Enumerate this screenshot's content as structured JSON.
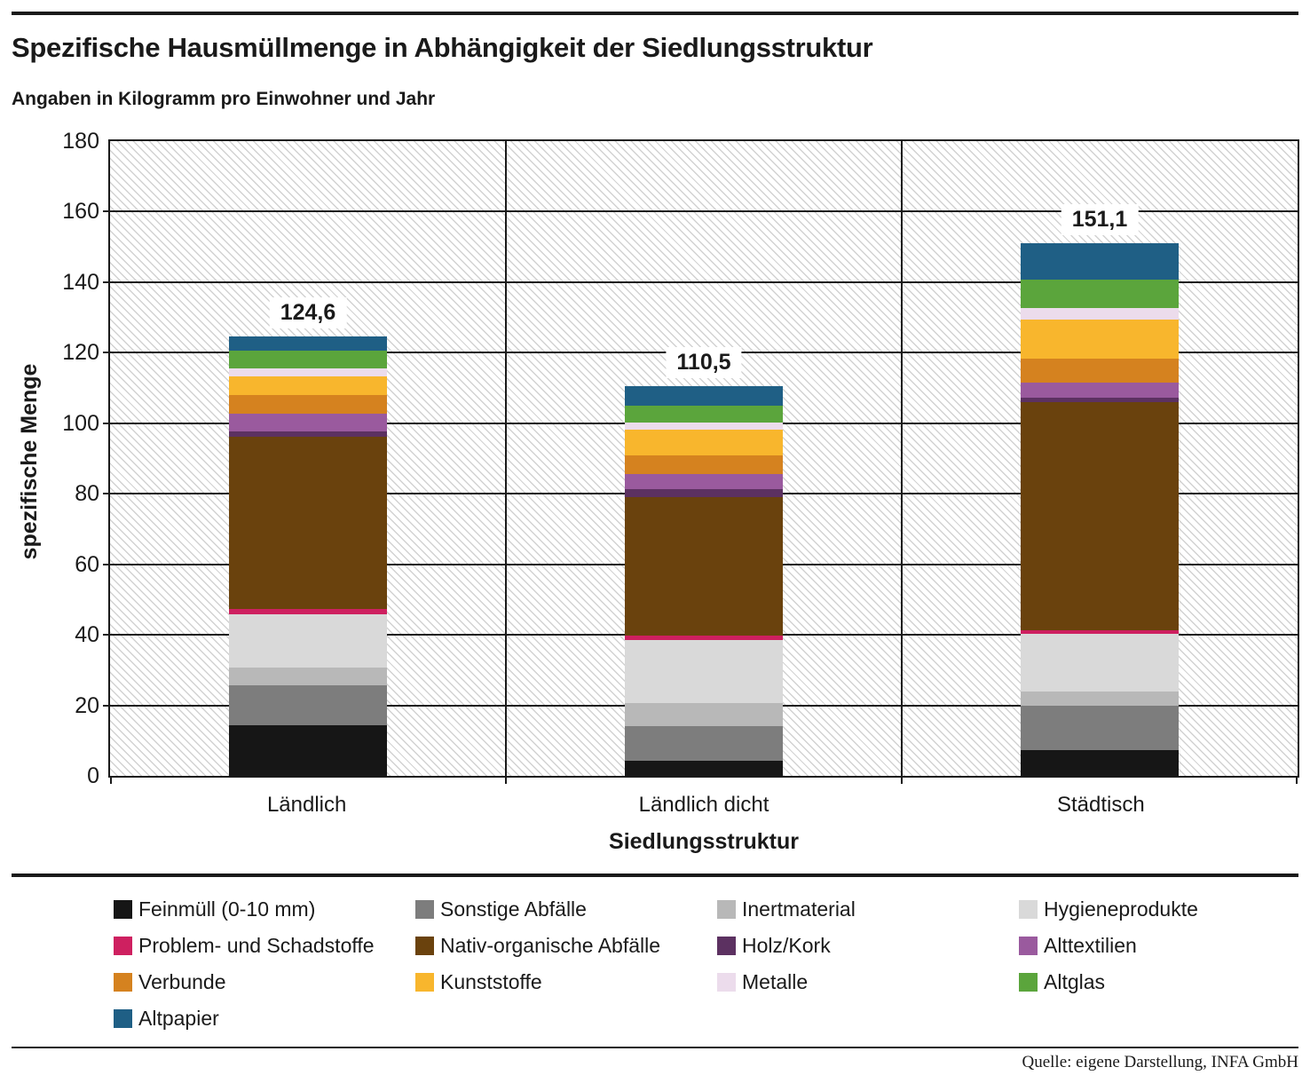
{
  "header": {
    "title": "Spezifische Hausmüllmenge in Abhängigkeit der Siedlungsstruktur",
    "subtitle": "Angaben in Kilogramm pro Einwohner und Jahr"
  },
  "footer": {
    "source": "Quelle: eigene Darstellung, INFA GmbH"
  },
  "chart_data": {
    "type": "bar",
    "stacked": true,
    "title": "Spezifische Hausmüllmenge in Abhängigkeit der Siedlungsstruktur",
    "subtitle": "Angaben in Kilogramm pro Einwohner und Jahr",
    "xlabel": "Siedlungsstruktur",
    "ylabel": "spezifische Menge",
    "ylim": [
      0,
      180
    ],
    "ytick_step": 20,
    "grid": "horizontal",
    "legend_position": "bottom",
    "background_hatch": "diagonal",
    "categories": [
      "Ländlich",
      "Ländlich dicht",
      "Städtisch"
    ],
    "totals": [
      124.6,
      110.5,
      151.1
    ],
    "total_labels": [
      "124,6",
      "110,5",
      "151,1"
    ],
    "series": [
      {
        "name": "Feinmüll (0-10 mm)",
        "color": "#161616",
        "values": [
          14.4,
          4.4,
          7.2
        ]
      },
      {
        "name": "Sonstige Abfälle",
        "color": "#7d7d7d",
        "values": [
          11.2,
          9.8,
          12.7
        ]
      },
      {
        "name": "Inertmaterial",
        "color": "#b8b8b8",
        "values": [
          5.0,
          6.4,
          4.0
        ]
      },
      {
        "name": "Hygieneprodukte",
        "color": "#d9d9d9",
        "values": [
          15.2,
          18.0,
          16.5
        ]
      },
      {
        "name": "Problem- und Schadstoffe",
        "color": "#ce2060",
        "values": [
          1.6,
          1.1,
          0.8
        ]
      },
      {
        "name": "Nativ-organische Abfälle",
        "color": "#6a420d",
        "values": [
          48.7,
          39.3,
          64.9
        ]
      },
      {
        "name": "Holz/Kork",
        "color": "#5c3161",
        "values": [
          1.5,
          2.2,
          1.2
        ]
      },
      {
        "name": "Alttextilien",
        "color": "#9a5a9e",
        "values": [
          5.1,
          4.3,
          4.3
        ]
      },
      {
        "name": "Verbunde",
        "color": "#d5821f",
        "values": [
          5.2,
          5.3,
          6.7
        ]
      },
      {
        "name": "Kunststoffe",
        "color": "#f8b62d",
        "values": [
          5.4,
          7.3,
          11.2
        ]
      },
      {
        "name": "Metalle",
        "color": "#ecdcec",
        "values": [
          2.3,
          2.1,
          3.1
        ]
      },
      {
        "name": "Altglas",
        "color": "#5ba53c",
        "values": [
          5.0,
          4.9,
          8.1
        ]
      },
      {
        "name": "Altpapier",
        "color": "#1f5f85",
        "values": [
          4.0,
          5.4,
          10.4
        ]
      }
    ]
  }
}
